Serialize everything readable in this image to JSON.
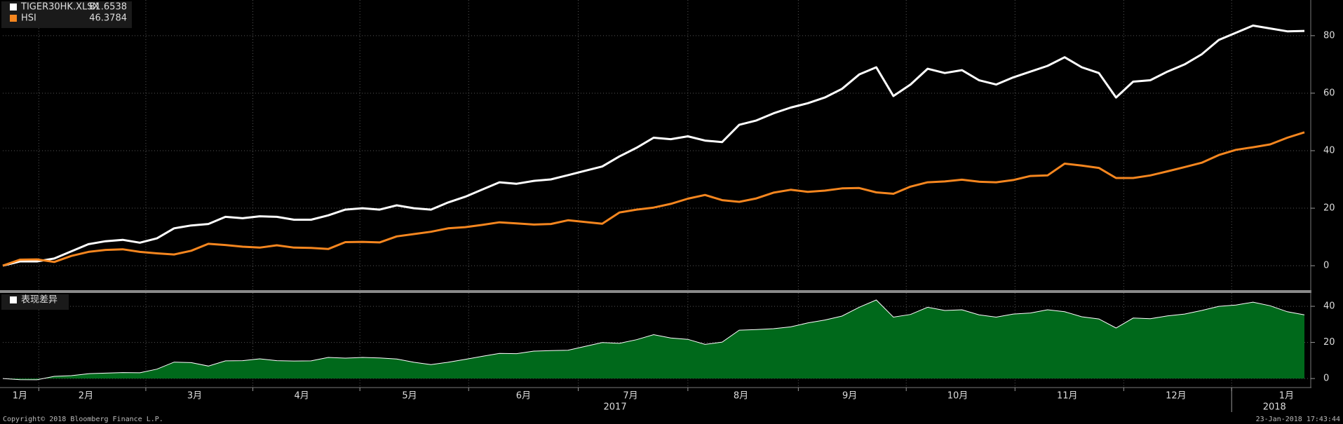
{
  "chart_data": [
    {
      "type": "line",
      "series": [
        {
          "name": "TIGER30HK.XLSX",
          "color": "#ffffff",
          "values": [
            0,
            1.5,
            1.5,
            2.5,
            5,
            7.5,
            8.5,
            9,
            8,
            9.5,
            13,
            14,
            14.5,
            17,
            16.5,
            17.2,
            17,
            16,
            16,
            17.5,
            19.5,
            20,
            19.5,
            21,
            20,
            19.5,
            22,
            24,
            26.5,
            29,
            28.5,
            29.5,
            30,
            31.5,
            33,
            34.5,
            38,
            41,
            44.5,
            44,
            45,
            43.5,
            43,
            49,
            50.5,
            53,
            55,
            56.5,
            58.5,
            61.5,
            66.5,
            69,
            59,
            63,
            68.5,
            67,
            68,
            64.5,
            63,
            65.5,
            67.5,
            69.5,
            72.5,
            69,
            67,
            58.5,
            64,
            64.5,
            67.5,
            70,
            73.5,
            78.5,
            81,
            83.5,
            82.5,
            81.5,
            81.6538
          ]
        },
        {
          "name": "HSI",
          "color": "#f5861f",
          "values": [
            0,
            2.1,
            2.2,
            1.3,
            3.4,
            4.8,
            5.5,
            5.7,
            4.8,
            4.3,
            3.9,
            5.2,
            7.6,
            7.2,
            6.6,
            6.3,
            7.1,
            6.3,
            6.2,
            5.8,
            8.2,
            8.3,
            8.1,
            10.2,
            11,
            11.8,
            13,
            13.4,
            14.2,
            15.1,
            14.7,
            14.3,
            14.5,
            15.8,
            15.2,
            14.6,
            18.5,
            19.5,
            20.2,
            21.5,
            23.3,
            24.6,
            22.8,
            22.2,
            23.4,
            25.4,
            26.4,
            25.7,
            26.1,
            26.9,
            27,
            25.5,
            25,
            27.5,
            29,
            29.3,
            29.9,
            29.2,
            29,
            29.8,
            31.2,
            31.4,
            35.5,
            34.8,
            34,
            30.5,
            30.5,
            31.4,
            32.8,
            34.3,
            35.8,
            38.5,
            40.3,
            41.2,
            42.2,
            44.5,
            46.3784
          ]
        }
      ],
      "xlim": [
        0,
        76
      ],
      "ylim": [
        -8.5,
        92.4
      ],
      "yticks": [
        0,
        20,
        40,
        60,
        80
      ],
      "grid": true
    },
    {
      "type": "area",
      "series": [
        {
          "name": "表现差异",
          "color": "#00691b",
          "values": [
            0,
            -0.6,
            -0.7,
            1.2,
            1.6,
            2.7,
            3,
            3.3,
            3.2,
            5.2,
            9.1,
            8.8,
            6.9,
            9.8,
            9.9,
            10.9,
            9.9,
            9.7,
            9.8,
            11.7,
            11.3,
            11.7,
            11.4,
            10.8,
            9,
            7.7,
            9,
            10.6,
            12.3,
            13.9,
            13.8,
            15.2,
            15.5,
            15.7,
            17.8,
            19.9,
            19.5,
            21.5,
            24.3,
            22.5,
            21.7,
            18.9,
            20.2,
            26.8,
            27.1,
            27.6,
            28.6,
            30.8,
            32.4,
            34.6,
            39.5,
            43.5,
            34,
            35.5,
            39.5,
            37.7,
            38.1,
            35.3,
            34,
            35.7,
            36.3,
            38.1,
            37,
            34.2,
            33,
            28,
            33.5,
            33.1,
            34.7,
            35.7,
            37.7,
            40,
            40.7,
            42.3,
            40.3,
            37,
            35.2754
          ]
        }
      ],
      "xlim": [
        0,
        76
      ],
      "ylim": [
        -5,
        47.4
      ],
      "yticks": [
        0,
        20,
        40
      ],
      "grid": true,
      "xticks": [
        {
          "value": 1,
          "label": "1月"
        },
        {
          "value": 4.85,
          "label": "2月"
        },
        {
          "value": 11.2,
          "label": "3月"
        },
        {
          "value": 17.45,
          "label": "4月"
        },
        {
          "value": 23.75,
          "label": "5月"
        },
        {
          "value": 30.4,
          "label": "6月"
        },
        {
          "value": 36.65,
          "label": "7月"
        },
        {
          "value": 43.1,
          "label": "8月"
        },
        {
          "value": 49.45,
          "label": "9月"
        },
        {
          "value": 55.75,
          "label": "10月"
        },
        {
          "value": 62.15,
          "label": "11月"
        },
        {
          "value": 68.5,
          "label": "12月"
        },
        {
          "value": 74.95,
          "label": "1月"
        }
      ],
      "xminor_ticks": [
        2.1,
        8.35,
        14.6,
        20.85,
        27.2,
        33.6,
        40,
        46.45,
        52.75,
        59.1,
        65.45,
        71.75
      ],
      "years": [
        {
          "value": 35.75,
          "label": "2017"
        },
        {
          "value": 74.25,
          "label": "2018"
        }
      ]
    }
  ],
  "copyright": "Copyright© 2018 Bloomberg Finance L.P.",
  "timestamp": "23-Jan-2018 17:43:44"
}
